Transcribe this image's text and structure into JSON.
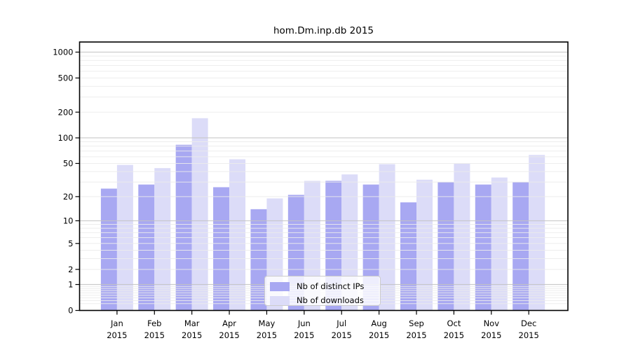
{
  "figure": {
    "background": "#ffffff",
    "text_color": "#000000"
  },
  "chart_data": {
    "type": "bar",
    "title": "hom.Dm.inp.db 2015",
    "categories": [
      "Jan",
      "Feb",
      "Mar",
      "Apr",
      "May",
      "Jun",
      "Jul",
      "Aug",
      "Sep",
      "Oct",
      "Nov",
      "Dec"
    ],
    "category_year": "2015",
    "series": [
      {
        "name": "Nb of distinct IPs",
        "color": "#a8a8f2",
        "values": [
          25,
          28,
          83,
          26,
          14,
          21,
          31,
          28,
          17,
          30,
          28,
          30
        ]
      },
      {
        "name": "Nb of downloads",
        "color": "#dcdcf8",
        "values": [
          48,
          44,
          170,
          56,
          19,
          31,
          37,
          49,
          32,
          50,
          34,
          63
        ]
      }
    ],
    "xlabel": "",
    "ylabel": "",
    "yscale": "log1p",
    "ylim": [
      0,
      1300
    ],
    "yticks": [
      0,
      1,
      2,
      5,
      10,
      20,
      50,
      100,
      200,
      500,
      1000
    ],
    "grid": "both",
    "grid_major_color": "#c3c3c3",
    "grid_minor_color": "#ebebeb",
    "legend_position": "lower-center"
  }
}
